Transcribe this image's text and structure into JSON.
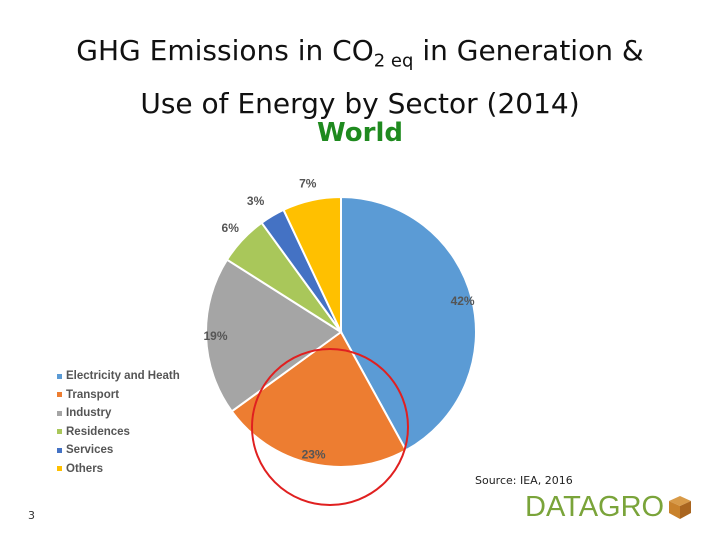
{
  "title": {
    "line1_prefix": "GHG Emissions in CO",
    "line1_sub": "2 eq",
    "line1_suffix": " in Generation &",
    "line2": "Use of Energy by Sector (2014)",
    "region": "World"
  },
  "chart_data": {
    "type": "pie",
    "categories": [
      "Electricity and Heath",
      "Transport",
      "Industry",
      "Residences",
      "Services",
      "Others"
    ],
    "values": [
      42,
      23,
      19,
      6,
      3,
      7
    ],
    "labels": [
      "42%",
      "23%",
      "19%",
      "6%",
      "3%",
      "7%"
    ],
    "colors": [
      "#5b9bd5",
      "#ed7d31",
      "#a5a5a5",
      "#a9c75a",
      "#4472c4",
      "#ffc000"
    ],
    "legend_position": "left",
    "highlight": "Transport",
    "highlight_color": "#e02020"
  },
  "source": "Source: IEA, 2016",
  "page_number": "3",
  "logo": {
    "text": "DATAGRO",
    "text_color": "#7aa43a",
    "mark_color": "#c9822c"
  }
}
